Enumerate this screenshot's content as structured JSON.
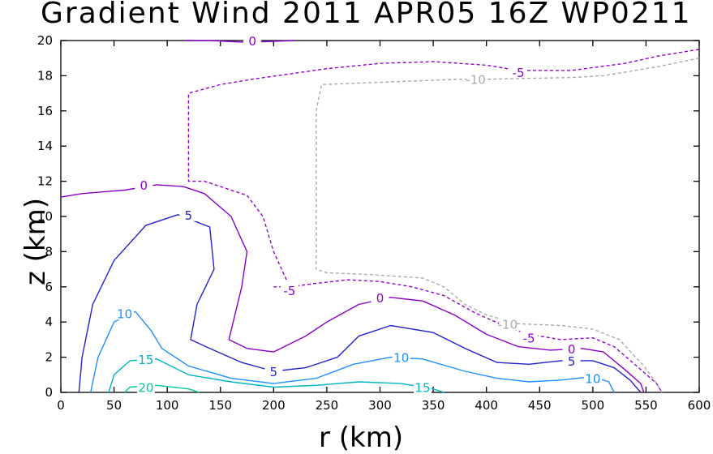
{
  "chart_data": {
    "type": "contour",
    "title": "Gradient Wind 2011 APR05 16Z  WP0211",
    "xlabel": "r (km)",
    "ylabel": "z (km)",
    "xlim": [
      0,
      600
    ],
    "ylim": [
      0,
      20
    ],
    "xticks": [
      "0",
      "50",
      "100",
      "150",
      "200",
      "250",
      "300",
      "350",
      "400",
      "450",
      "500",
      "550",
      "600"
    ],
    "yticks": [
      "0",
      "2",
      "4",
      "6",
      "8",
      "10",
      "12",
      "14",
      "16",
      "18",
      "20"
    ],
    "contours": [
      {
        "level": 0,
        "label": "0",
        "color": "#8b00c8",
        "dashed": false,
        "label_at": [
          [
            180,
            20
          ],
          [
            78,
            11.8
          ],
          [
            300,
            5.4
          ],
          [
            480,
            2.5
          ]
        ],
        "lines": [
          [
            [
              117,
              20
            ],
            [
              140,
              20
            ],
            [
              175,
              19.9
            ],
            [
              220,
              20
            ]
          ],
          [
            [
              0,
              11.1
            ],
            [
              20,
              11.3
            ],
            [
              60,
              11.5
            ],
            [
              90,
              11.8
            ],
            [
              115,
              11.7
            ],
            [
              135,
              11.3
            ],
            [
              160,
              10.0
            ],
            [
              175,
              8.0
            ],
            [
              170,
              6.0
            ],
            [
              158,
              3.0
            ],
            [
              175,
              2.5
            ],
            [
              200,
              2.3
            ],
            [
              230,
              3.2
            ],
            [
              250,
              4.0
            ],
            [
              280,
              5.0
            ],
            [
              310,
              5.4
            ],
            [
              340,
              5.2
            ],
            [
              370,
              4.4
            ],
            [
              400,
              3.3
            ],
            [
              430,
              2.6
            ],
            [
              460,
              2.4
            ],
            [
              490,
              2.5
            ],
            [
              510,
              2.3
            ],
            [
              530,
              1.3
            ],
            [
              545,
              0.5
            ],
            [
              548,
              0
            ]
          ]
        ]
      },
      {
        "level": 5,
        "label": "5",
        "color": "#2222cc",
        "dashed": false,
        "label_at": [
          [
            120,
            10.1
          ],
          [
            200,
            1.2
          ],
          [
            480,
            1.8
          ]
        ],
        "lines": [
          [
            [
              17,
              0
            ],
            [
              20,
              2
            ],
            [
              30,
              5
            ],
            [
              50,
              7.5
            ],
            [
              80,
              9.5
            ],
            [
              110,
              10.1
            ],
            [
              140,
              9.4
            ],
            [
              144,
              7.0
            ],
            [
              128,
              5.0
            ],
            [
              122,
              3.0
            ],
            [
              140,
              2.5
            ],
            [
              170,
              1.7
            ],
            [
              200,
              1.2
            ],
            [
              230,
              1.4
            ],
            [
              260,
              2.0
            ],
            [
              280,
              3.2
            ],
            [
              310,
              3.8
            ],
            [
              350,
              3.4
            ],
            [
              380,
              2.5
            ],
            [
              410,
              1.7
            ],
            [
              440,
              1.6
            ],
            [
              470,
              1.8
            ],
            [
              500,
              1.8
            ],
            [
              520,
              1.4
            ],
            [
              535,
              0.7
            ],
            [
              545,
              0
            ]
          ]
        ]
      },
      {
        "level": 10,
        "label": "10",
        "color": "#1e90ff",
        "dashed": false,
        "label_at": [
          [
            60,
            4.5
          ],
          [
            320,
            2.0
          ],
          [
            500,
            0.8
          ]
        ],
        "lines": [
          [
            [
              28,
              0
            ],
            [
              35,
              2
            ],
            [
              50,
              4
            ],
            [
              70,
              4.6
            ],
            [
              85,
              3.5
            ],
            [
              95,
              2.5
            ],
            [
              120,
              1.5
            ],
            [
              160,
              0.8
            ],
            [
              200,
              0.5
            ],
            [
              240,
              0.8
            ],
            [
              275,
              1.6
            ],
            [
              310,
              2.0
            ],
            [
              340,
              1.9
            ],
            [
              380,
              1.2
            ],
            [
              410,
              0.8
            ],
            [
              440,
              0.6
            ],
            [
              470,
              0.7
            ],
            [
              500,
              0.9
            ],
            [
              515,
              0.6
            ],
            [
              520,
              0
            ]
          ]
        ]
      },
      {
        "level": 15,
        "label": "15",
        "color": "#00b4c0",
        "dashed": false,
        "label_at": [
          [
            80,
            1.9
          ],
          [
            340,
            0.3
          ]
        ],
        "lines": [
          [
            [
              45,
              0
            ],
            [
              50,
              1.0
            ],
            [
              65,
              1.8
            ],
            [
              90,
              1.9
            ],
            [
              120,
              1.0
            ],
            [
              160,
              0.6
            ],
            [
              200,
              0.3
            ],
            [
              240,
              0.4
            ],
            [
              280,
              0.6
            ],
            [
              320,
              0.5
            ],
            [
              350,
              0.2
            ],
            [
              360,
              0
            ]
          ]
        ]
      },
      {
        "level": 20,
        "label": "20",
        "color": "#00c8a0",
        "dashed": false,
        "label_at": [
          [
            80,
            0.3
          ]
        ],
        "lines": [
          [
            [
              60,
              0
            ],
            [
              65,
              0.3
            ],
            [
              90,
              0.4
            ],
            [
              120,
              0.2
            ],
            [
              130,
              0
            ]
          ]
        ]
      },
      {
        "level": -5,
        "label": "-5",
        "color": "#9400d3",
        "dashed": true,
        "label_at": [
          [
            215,
            5.8
          ],
          [
            430,
            18.2
          ],
          [
            440,
            3.1
          ]
        ],
        "lines": [
          [
            [
              200,
              6.0
            ],
            [
              215,
              6.0
            ],
            [
              240,
              6.2
            ],
            [
              270,
              6.4
            ],
            [
              300,
              6.3
            ],
            [
              330,
              6.0
            ],
            [
              360,
              5.5
            ],
            [
              390,
              4.5
            ],
            [
              420,
              3.7
            ],
            [
              440,
              3.3
            ],
            [
              470,
              3.0
            ],
            [
              500,
              3.1
            ],
            [
              520,
              2.6
            ],
            [
              545,
              1.3
            ],
            [
              560,
              0.5
            ],
            [
              565,
              0
            ]
          ],
          [
            [
              212,
              6.4
            ],
            [
              200,
              8.0
            ],
            [
              190,
              10.0
            ],
            [
              175,
              11.2
            ],
            [
              135,
              12.0
            ],
            [
              120,
              12.0
            ],
            [
              120,
              17.0
            ],
            [
              150,
              17.5
            ],
            [
              180,
              17.8
            ],
            [
              250,
              18.4
            ],
            [
              300,
              18.7
            ],
            [
              350,
              18.8
            ],
            [
              400,
              18.6
            ],
            [
              430,
              18.3
            ],
            [
              480,
              18.3
            ],
            [
              530,
              18.7
            ],
            [
              560,
              19.1
            ],
            [
              600,
              19.5
            ]
          ]
        ]
      },
      {
        "level": -10,
        "label": "-10",
        "color": "#aaaaaa",
        "dashed": true,
        "label_at": [
          [
            390,
            17.8
          ],
          [
            420,
            3.9
          ]
        ],
        "lines": [
          [
            [
              600,
              19.0
            ],
            [
              560,
              18.5
            ],
            [
              510,
              18.0
            ],
            [
              480,
              17.9
            ],
            [
              400,
              17.8
            ],
            [
              375,
              17.8
            ],
            [
              245,
              17.5
            ],
            [
              240,
              16.0
            ],
            [
              240,
              7.0
            ],
            [
              250,
              6.8
            ],
            [
              290,
              6.7
            ],
            [
              340,
              6.5
            ],
            [
              360,
              6.0
            ],
            [
              380,
              5.0
            ],
            [
              400,
              4.4
            ],
            [
              430,
              3.9
            ],
            [
              470,
              3.8
            ],
            [
              500,
              3.6
            ],
            [
              525,
              3.0
            ],
            [
              548,
              1.5
            ],
            [
              560,
              0.5
            ],
            [
              565,
              0
            ]
          ]
        ]
      }
    ]
  }
}
